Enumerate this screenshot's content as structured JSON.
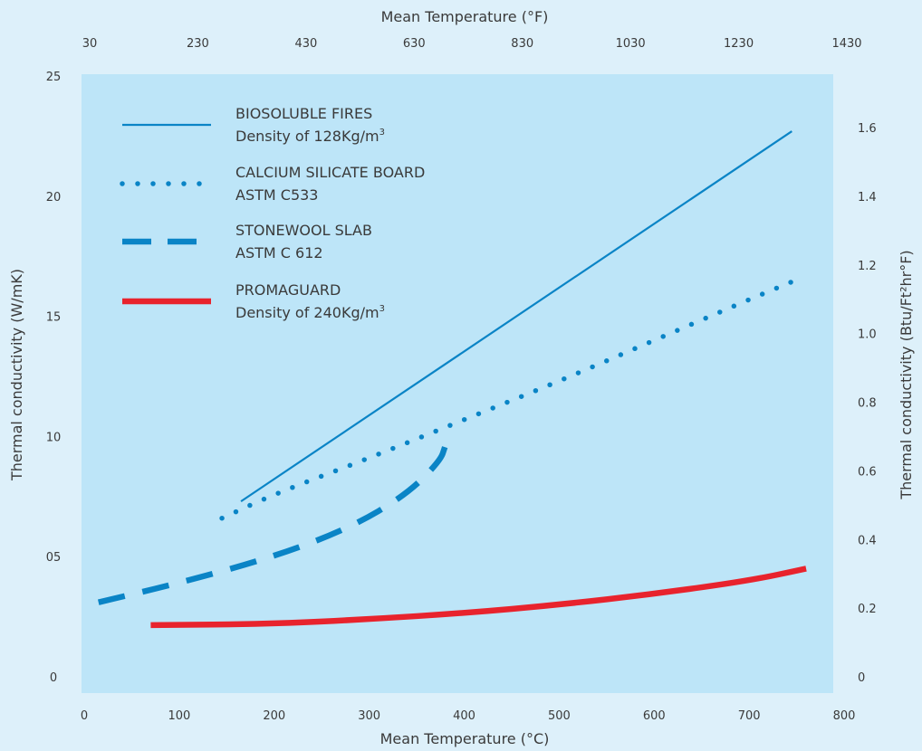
{
  "colors": {
    "page_background": "#ddf0fa",
    "plot_background": "#bde5f8",
    "blue_series": "#0a84c6",
    "red_series": "#e8232d"
  },
  "chart_data": {
    "type": "line",
    "x_bottom": {
      "label": "Mean Temperature (°C)",
      "range": [
        0,
        800
      ],
      "ticks": [
        "0",
        "100",
        "200",
        "300",
        "400",
        "500",
        "600",
        "700",
        "800"
      ]
    },
    "x_top": {
      "label": "Mean Temperature (°F)",
      "ticks": [
        "30",
        "230",
        "430",
        "630",
        "830",
        "1030",
        "1230",
        "1430"
      ]
    },
    "y_left": {
      "label": "Thermal conductivity (W/mK)",
      "range": [
        0,
        25
      ],
      "ticks": [
        {
          "label": "0",
          "value": 0
        },
        {
          "label": "05",
          "value": 5
        },
        {
          "label": "10",
          "value": 10
        },
        {
          "label": "15",
          "value": 15
        },
        {
          "label": "20",
          "value": 20
        },
        {
          "label": "25",
          "value": 25
        }
      ]
    },
    "y_right": {
      "label": "Thermal conductivity (Btu/Ft²hr°F)",
      "ticks": [
        {
          "label": "0",
          "value": 0
        },
        {
          "label": "0.2",
          "value": 0.2
        },
        {
          "label": "0.4",
          "value": 0.4
        },
        {
          "label": "0.6",
          "value": 0.6
        },
        {
          "label": "0.8",
          "value": 0.8
        },
        {
          "label": "1.0",
          "value": 1.0
        },
        {
          "label": "1.2",
          "value": 1.2
        },
        {
          "label": "1.4",
          "value": 1.4
        },
        {
          "label": "1.6",
          "value": 1.6
        }
      ]
    },
    "legend_position": "top-left",
    "grid": false,
    "series": [
      {
        "name": "BIOSOLUBLE FIRES",
        "note": "Density of 128Kg/m³",
        "style": "solid-thin",
        "color": "#0a84c6",
        "points": [
          [
            165,
            7.3
          ],
          [
            745,
            22.7
          ]
        ]
      },
      {
        "name": "CALCIUM SILICATE BOARD",
        "note": "ASTM C533",
        "style": "dotted",
        "color": "#0a84c6",
        "points": [
          [
            145,
            6.6
          ],
          [
            200,
            7.6
          ],
          [
            300,
            9.1
          ],
          [
            400,
            10.7
          ],
          [
            500,
            12.3
          ],
          [
            600,
            14.0
          ],
          [
            700,
            15.7
          ],
          [
            755,
            16.6
          ]
        ]
      },
      {
        "name": "STONEWOOL SLAB",
        "note": "ASTM C 612",
        "style": "dashed",
        "color": "#0a84c6",
        "points": [
          [
            15,
            3.1
          ],
          [
            100,
            3.9
          ],
          [
            200,
            5.0
          ],
          [
            280,
            6.2
          ],
          [
            340,
            7.6
          ],
          [
            375,
            9.0
          ],
          [
            380,
            9.6
          ]
        ]
      },
      {
        "name": "PROMAGUARD",
        "note": "Density of 240Kg/m³",
        "style": "solid-thick",
        "color": "#e8232d",
        "points": [
          [
            70,
            2.15
          ],
          [
            200,
            2.2
          ],
          [
            300,
            2.4
          ],
          [
            400,
            2.65
          ],
          [
            500,
            3.0
          ],
          [
            600,
            3.45
          ],
          [
            700,
            4.0
          ],
          [
            760,
            4.5
          ]
        ]
      }
    ]
  }
}
